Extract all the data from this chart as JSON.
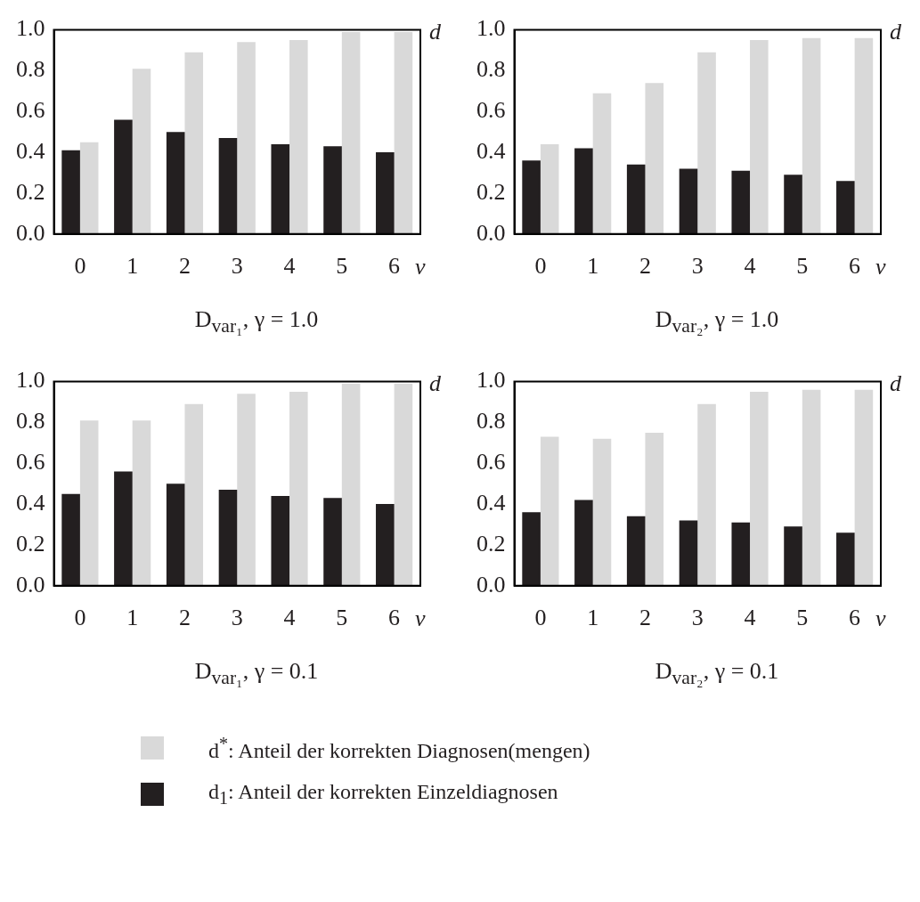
{
  "chart_data": [
    {
      "type": "bar",
      "title": "D$_{var₁}$, γ = 1.0",
      "xlabel": "v",
      "ylabel": "d",
      "categories": [
        "0",
        "1",
        "2",
        "3",
        "4",
        "5",
        "6"
      ],
      "ylim": [
        0,
        1
      ],
      "yticks": [
        {
          "value": 0,
          "label": "0.0"
        },
        {
          "value": 0.2,
          "label": "0.2"
        },
        {
          "value": 0.4,
          "label": "0.4"
        },
        {
          "value": 0.6,
          "label": "0.6"
        },
        {
          "value": 0.8,
          "label": "0.8"
        },
        {
          "value": 1,
          "label": "1.0"
        }
      ],
      "grid": false,
      "legend": false,
      "series": [
        {
          "color": "#231f20",
          "values": [
            0.41,
            0.56,
            0.5,
            0.47,
            0.44,
            0.43,
            0.4
          ]
        },
        {
          "color": "#d9d9d9",
          "values": [
            0.45,
            0.81,
            0.89,
            0.94,
            0.95,
            0.99,
            0.99
          ]
        }
      ]
    },
    {
      "type": "bar",
      "title": "D$_{var₂}$, γ = 1.0",
      "xlabel": "v",
      "ylabel": "d",
      "categories": [
        "0",
        "1",
        "2",
        "3",
        "4",
        "5",
        "6"
      ],
      "ylim": [
        0,
        1
      ],
      "yticks": [
        {
          "value": 0,
          "label": "0.0"
        },
        {
          "value": 0.2,
          "label": "0.2"
        },
        {
          "value": 0.4,
          "label": "0.4"
        },
        {
          "value": 0.6,
          "label": "0.6"
        },
        {
          "value": 0.8,
          "label": "0.8"
        },
        {
          "value": 1,
          "label": "1.0"
        }
      ],
      "grid": false,
      "legend": false,
      "series": [
        {
          "color": "#231f20",
          "values": [
            0.36,
            0.42,
            0.34,
            0.32,
            0.31,
            0.29,
            0.26
          ]
        },
        {
          "color": "#d9d9d9",
          "values": [
            0.44,
            0.69,
            0.74,
            0.89,
            0.95,
            0.96,
            0.96
          ]
        }
      ]
    },
    {
      "type": "bar",
      "title": "D$_{var₁}$, γ = 0.1",
      "xlabel": "v",
      "ylabel": "d",
      "categories": [
        "0",
        "1",
        "2",
        "3",
        "4",
        "5",
        "6"
      ],
      "ylim": [
        0,
        1
      ],
      "yticks": [
        {
          "value": 0,
          "label": "0.0"
        },
        {
          "value": 0.2,
          "label": "0.2"
        },
        {
          "value": 0.4,
          "label": "0.4"
        },
        {
          "value": 0.6,
          "label": "0.6"
        },
        {
          "value": 0.8,
          "label": "0.8"
        },
        {
          "value": 1,
          "label": "1.0"
        }
      ],
      "grid": false,
      "legend": false,
      "series": [
        {
          "color": "#231f20",
          "values": [
            0.45,
            0.56,
            0.5,
            0.47,
            0.44,
            0.43,
            0.4
          ]
        },
        {
          "color": "#d9d9d9",
          "values": [
            0.81,
            0.81,
            0.89,
            0.94,
            0.95,
            0.99,
            0.99
          ]
        }
      ]
    },
    {
      "type": "bar",
      "title": "D$_{var₂}$, γ = 0.1",
      "xlabel": "v",
      "ylabel": "d",
      "categories": [
        "0",
        "1",
        "2",
        "3",
        "4",
        "5",
        "6"
      ],
      "ylim": [
        0,
        1
      ],
      "yticks": [
        {
          "value": 0,
          "label": "0.0"
        },
        {
          "value": 0.2,
          "label": "0.2"
        },
        {
          "value": 0.4,
          "label": "0.4"
        },
        {
          "value": 0.6,
          "label": "0.6"
        },
        {
          "value": 0.8,
          "label": "0.8"
        },
        {
          "value": 1,
          "label": "1.0"
        }
      ],
      "grid": false,
      "legend": "bottom",
      "series": [
        {
          "name": "d$_{1}$: Anteil der korrekten Einzeldiagnosen",
          "color": "#231f20",
          "values": [
            0.36,
            0.42,
            0.34,
            0.32,
            0.31,
            0.29,
            0.26
          ]
        },
        {
          "name": "d$^{*}$: Anteil der korrekten Diagnosen(mengen)",
          "color": "#d9d9d9",
          "values": [
            0.73,
            0.72,
            0.75,
            0.89,
            0.95,
            0.96,
            0.96
          ]
        }
      ]
    }
  ]
}
